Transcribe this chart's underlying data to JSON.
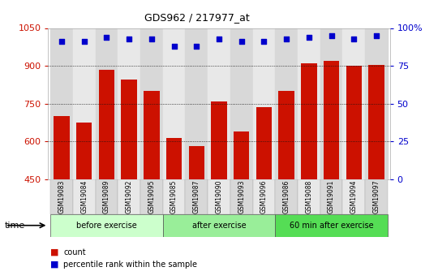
{
  "title": "GDS962 / 217977_at",
  "samples": [
    "GSM19083",
    "GSM19084",
    "GSM19089",
    "GSM19092",
    "GSM19095",
    "GSM19085",
    "GSM19087",
    "GSM19090",
    "GSM19093",
    "GSM19096",
    "GSM19086",
    "GSM19088",
    "GSM19091",
    "GSM19094",
    "GSM19097"
  ],
  "counts": [
    700,
    675,
    885,
    845,
    800,
    615,
    580,
    760,
    640,
    735,
    800,
    910,
    920,
    900,
    905
  ],
  "percentile_ranks": [
    91,
    91,
    94,
    93,
    93,
    88,
    88,
    93,
    91,
    91,
    93,
    94,
    95,
    93,
    95
  ],
  "bar_color": "#cc1100",
  "dot_color": "#0000cc",
  "ylim_left": [
    450,
    1050
  ],
  "ylim_right": [
    0,
    100
  ],
  "yticks_left": [
    450,
    600,
    750,
    900,
    1050
  ],
  "yticks_right": [
    0,
    25,
    50,
    75,
    100
  ],
  "grid_lines": [
    600,
    750,
    900
  ],
  "groups": [
    {
      "label": "before exercise",
      "start": 0,
      "end": 5
    },
    {
      "label": "after exercise",
      "start": 5,
      "end": 10
    },
    {
      "label": "60 min after exercise",
      "start": 10,
      "end": 15
    }
  ],
  "group_colors": [
    "#ccffcc",
    "#99ee99",
    "#55dd55"
  ],
  "legend_count_label": "count",
  "legend_pct_label": "percentile rank within the sample",
  "tick_label_color_left": "#cc1100",
  "tick_label_color_right": "#0000cc",
  "col_colors": [
    "#d8d8d8",
    "#e8e8e8"
  ],
  "grid_color": "#111111",
  "bar_bottom": 450
}
